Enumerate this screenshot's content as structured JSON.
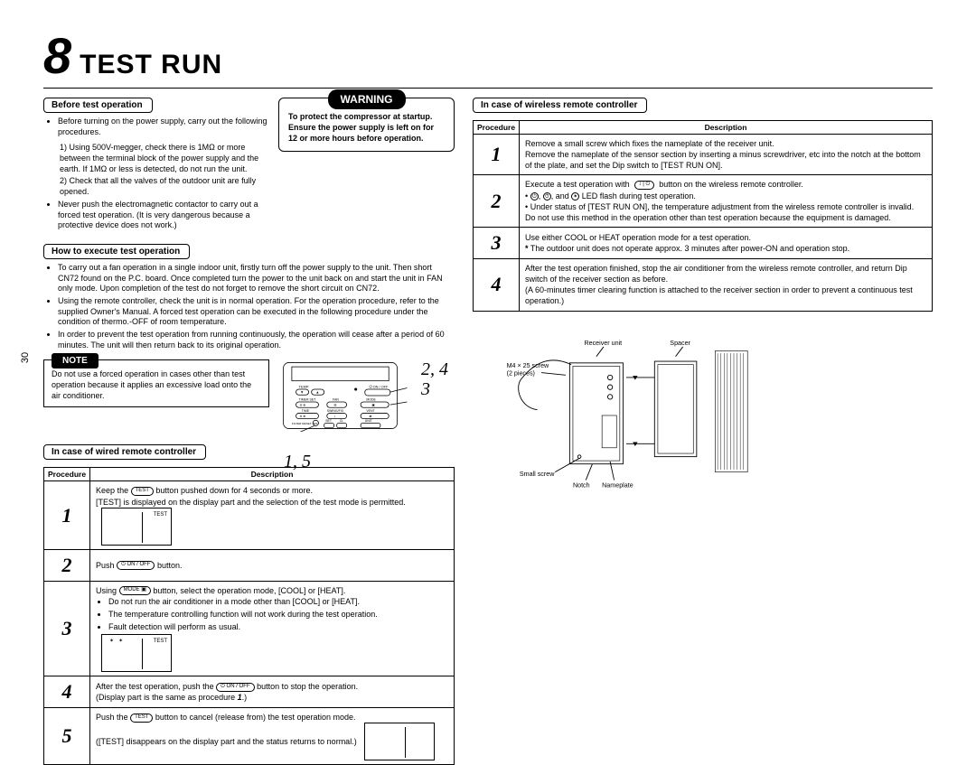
{
  "chapter_number": "8",
  "chapter_title": "TEST RUN",
  "page_number": "30",
  "warning": {
    "title": "WARNING",
    "body": "To protect the compressor at startup. Ensure the power supply is left on for 12 or more hours before operation."
  },
  "note": {
    "title": "NOTE",
    "body": "Do not use a forced operation in cases other than test operation because it applies an excessive load onto the air conditioner."
  },
  "sections": {
    "before": {
      "title": "Before test operation",
      "bullets": [
        "Before turning on the power supply, carry out the following procedures."
      ],
      "numlist": [
        "Using 500V-megger, check there is 1MΩ or more between the terminal block of the power supply and the earth. If 1MΩ or less is detected, do not run the unit.",
        "Check that all the valves of the outdoor unit are fully opened."
      ],
      "bullets_after": [
        "Never push the electromagnetic contactor to carry out a forced test operation. (It is very dangerous because a protective device does not work.)"
      ]
    },
    "how": {
      "title": "How to execute test operation",
      "bullets": [
        "To carry out a fan operation in a single indoor unit, firstly turn off the power supply to the unit. Then short CN72 found on the P.C. board. Once completed turn the power to the unit back on and start the unit in FAN only mode. Upon completion of the test do not forget to remove the short circuit on CN72.",
        "Using the remote controller, check the unit is in normal operation. For the operation procedure, refer to the supplied Owner's Manual. A forced test operation can be executed in the following procedure under the condition of thermo.-OFF of room temperature.",
        "In order to prevent the test operation from running continuously, the operation will cease after a period of 60 minutes. The unit will then return back to its original operation."
      ]
    },
    "wired": {
      "title": "In case of wired remote controller",
      "table": {
        "headers": [
          "Procedure",
          "Description"
        ],
        "rows": [
          {
            "n": "1",
            "desc_html": "Keep the <span class='inline-btn'>TEST</span> button pushed down for 4 seconds or more.<br>[TEST] is displayed on the display part and the selection of the test mode is permitted."
          },
          {
            "n": "2",
            "desc_html": "Push <span class='inline-btn'>⏻ ON / OFF</span> button."
          },
          {
            "n": "3",
            "desc_html": "Using <span class='inline-btn'>MODE ▣</span> button, select the operation mode, [COOL] or [HEAT].<ul class='sub-bullets'><li>Do not run the air conditioner in a mode other than [COOL] or [HEAT].</li><li>The temperature controlling function will not work during the test operation.</li><li>Fault detection will perform as usual.</li></ul>"
          },
          {
            "n": "4",
            "desc_html": "After the test operation, push the <span class='inline-btn'>⏻ ON / OFF</span> button to stop the operation.<br>(Display part is the same as procedure <b><i>1</i></b>.)"
          },
          {
            "n": "5",
            "desc_html": "Push the <span class='inline-btn'>TEST</span> button to cancel (release from) the test operation mode.<br>([TEST] disappears on the display part and the status returns to normal.)"
          }
        ]
      }
    },
    "wireless": {
      "title": "In case of wireless remote controller",
      "table": {
        "headers": [
          "Procedure",
          "Description"
        ],
        "rows": [
          {
            "n": "1",
            "desc_html": "Remove a small screw which fixes the nameplate of the receiver unit.<br>Remove the nameplate of the sensor section by inserting a minus screwdriver, etc into the notch at the bottom of the plate, and set the Dip switch to [TEST RUN ON]."
          },
          {
            "n": "2",
            "desc_html": "Execute a test operation with &nbsp;<span class='inline-btn'>↕ | ⏻</span>&nbsp; button on the wireless remote controller.<br>• <span class='led'>⏻</span>, <span class='led'>⏱</span>, and <span class='led'>✶</span> LED flash during test operation.<br>• Under status of [TEST RUN ON], the temperature adjustment from the wireless remote controller is invalid.<br>Do not use this method in the operation other than test operation because the equipment is damaged."
          },
          {
            "n": "3",
            "desc_html": "Use either COOL or HEAT operation mode for a test operation.<br><b>*</b> The outdoor unit does not operate approx. 3 minutes after power-ON and operation stop."
          },
          {
            "n": "4",
            "desc_html": "After the test operation finished, stop the air conditioner from the wireless remote controller, and return Dip switch of the receiver section as before.<br>(A 60-minutes timer clearing function is attached to the receiver section in order to prevent a continuous test operation.)"
          }
        ]
      }
    }
  },
  "remote_callouts": {
    "right_top": "2, 4",
    "right_bottom": "3",
    "left": "1, 5"
  },
  "receiver_labels": {
    "unit": "Receiver unit",
    "spacer": "Spacer",
    "screw": "M4 × 25 screw\n(2 pieces)",
    "small_screw": "Small screw",
    "notch": "Notch",
    "nameplate": "Nameplate"
  },
  "remote_buttons": {
    "temp": "TEMP.",
    "onoff": "⏻ ON / OFF",
    "timerset": "TIMER SET",
    "fan": "FAN",
    "mode": "MODE",
    "time": "TIME",
    "swing": "SWING/FIX",
    "vent": "VENT",
    "filter": "FILTER\nRESET TEST",
    "set": "SET",
    "cl": "CL",
    "unit": "UNIT"
  }
}
